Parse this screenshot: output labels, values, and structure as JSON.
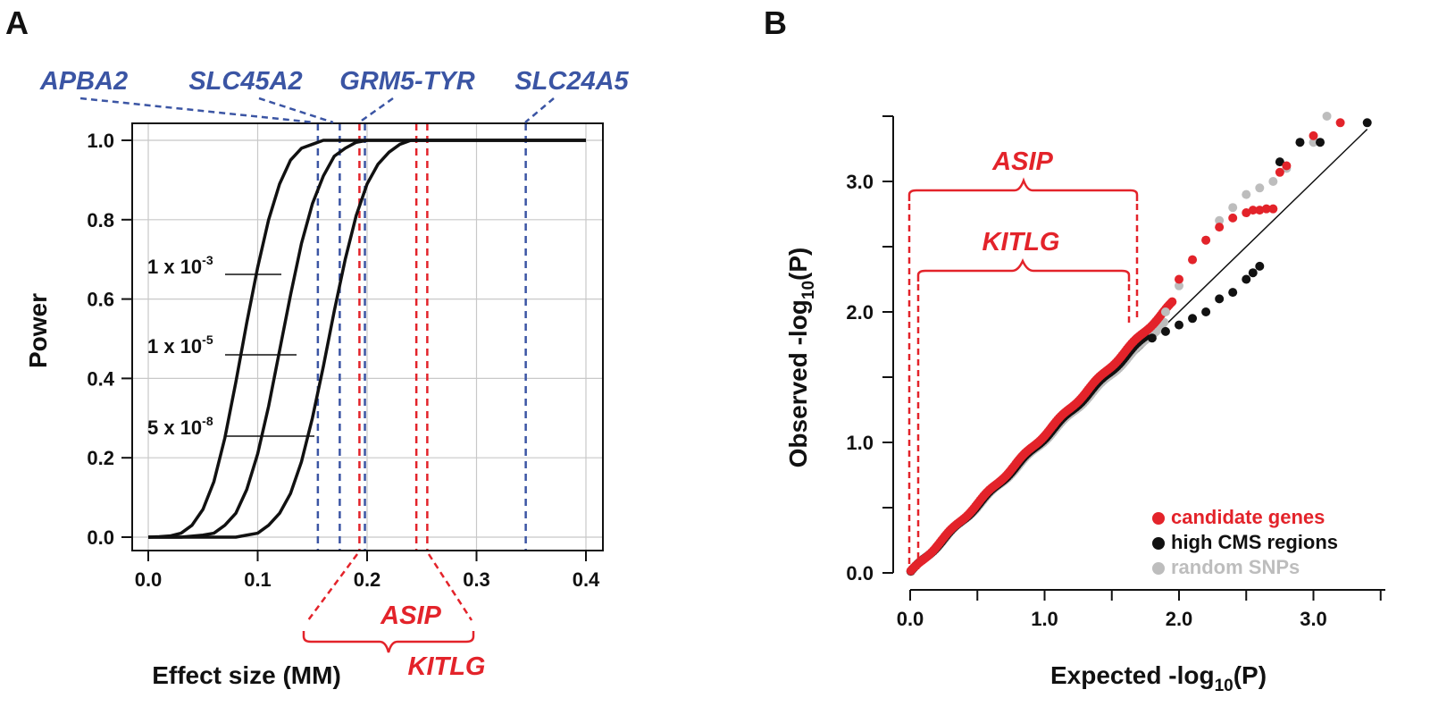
{
  "colors": {
    "blue": "#3b55a4",
    "red": "#e3232a",
    "black": "#111111",
    "grey": "#bdbdbd",
    "grid": "#c8c8c8"
  },
  "chart_data": [
    {
      "panel": "A",
      "type": "line",
      "xlabel": "Effect size (MM)",
      "ylabel": "Power",
      "xlim": [
        0,
        0.4
      ],
      "ylim": [
        0,
        1
      ],
      "xticks": [
        "0.0",
        "0.1",
        "0.2",
        "0.3",
        "0.4"
      ],
      "yticks": [
        "0.0",
        "0.2",
        "0.4",
        "0.6",
        "0.8",
        "1.0"
      ],
      "grid": true,
      "curve_labels": [
        {
          "base": "1 x 10",
          "exp": "-3"
        },
        {
          "base": "1 x 10",
          "exp": "-5"
        },
        {
          "base": "5 x 10",
          "exp": "-8"
        }
      ],
      "series": [
        {
          "x": [
            0,
            0.01,
            0.02,
            0.03,
            0.04,
            0.05,
            0.06,
            0.07,
            0.08,
            0.09,
            0.1,
            0.11,
            0.12,
            0.13,
            0.14,
            0.15,
            0.16,
            0.17,
            0.18,
            0.19,
            0.2,
            0.4
          ],
          "y": [
            0,
            0.001,
            0.003,
            0.01,
            0.03,
            0.07,
            0.14,
            0.25,
            0.39,
            0.54,
            0.68,
            0.8,
            0.89,
            0.95,
            0.98,
            0.99,
            1,
            1,
            1,
            1,
            1,
            1
          ]
        },
        {
          "x": [
            0,
            0.03,
            0.05,
            0.06,
            0.07,
            0.08,
            0.09,
            0.1,
            0.11,
            0.12,
            0.13,
            0.14,
            0.15,
            0.16,
            0.17,
            0.18,
            0.19,
            0.2,
            0.21,
            0.22,
            0.4
          ],
          "y": [
            0,
            0,
            0.005,
            0.01,
            0.03,
            0.06,
            0.12,
            0.21,
            0.33,
            0.47,
            0.61,
            0.74,
            0.84,
            0.91,
            0.96,
            0.98,
            0.995,
            1,
            1,
            1,
            1
          ]
        },
        {
          "x": [
            0,
            0.05,
            0.08,
            0.09,
            0.1,
            0.11,
            0.12,
            0.13,
            0.14,
            0.15,
            0.16,
            0.17,
            0.18,
            0.19,
            0.2,
            0.21,
            0.22,
            0.23,
            0.24,
            0.25,
            0.4
          ],
          "y": [
            0,
            0,
            0,
            0.005,
            0.01,
            0.03,
            0.06,
            0.11,
            0.19,
            0.3,
            0.43,
            0.57,
            0.7,
            0.81,
            0.89,
            0.94,
            0.97,
            0.99,
            1,
            1,
            1
          ]
        }
      ],
      "blue_lines": [
        {
          "gene": "APBA2",
          "x": 0.155
        },
        {
          "gene": "SLC45A2",
          "x": 0.175
        },
        {
          "gene": "GRM5-TYR",
          "x": 0.198
        },
        {
          "gene": "SLC24A5",
          "x": 0.345
        }
      ],
      "red_lines": [
        {
          "gene": "ASIP",
          "x": 0.245
        },
        {
          "gene": "KITLG",
          "x": 0.255
        },
        {
          "gene": "",
          "x": 0.193
        }
      ],
      "blue_labels": [
        "APBA2",
        "SLC45A2",
        "GRM5-TYR",
        "SLC24A5"
      ],
      "red_labels": [
        "ASIP",
        "KITLG"
      ]
    },
    {
      "panel": "B",
      "type": "scatter",
      "xlabel": {
        "pre": "Expected -log",
        "sub": "10",
        "post": "(P)"
      },
      "ylabel": {
        "pre": "Observed -log",
        "sub": "10",
        "post": "(P)"
      },
      "xlim": [
        0,
        3.5
      ],
      "ylim": [
        0,
        3.5
      ],
      "xticks": [
        "0.0",
        "1.0",
        "2.0",
        "3.0"
      ],
      "yticks": [
        "0.0",
        "1.0",
        "2.0",
        "3.0"
      ],
      "grid": false,
      "legend_position": "bottom-right",
      "bracket_labels": [
        "ASIP",
        "KITLG"
      ],
      "series": [
        {
          "name": "candidate genes",
          "color": "#e3232a",
          "x": [
            2.0,
            2.1,
            2.2,
            2.3,
            2.4,
            2.5,
            2.55,
            2.6,
            2.65,
            2.7,
            2.75,
            2.8,
            3.0,
            3.2
          ],
          "y": [
            2.25,
            2.4,
            2.55,
            2.65,
            2.72,
            2.76,
            2.78,
            2.78,
            2.79,
            2.79,
            3.07,
            3.12,
            3.35,
            3.45
          ]
        },
        {
          "name": "high CMS regions",
          "color": "#111111",
          "x": [
            1.8,
            1.9,
            2.0,
            2.1,
            2.2,
            2.3,
            2.4,
            2.5,
            2.55,
            2.6,
            2.75,
            2.9,
            3.05,
            3.4
          ],
          "y": [
            1.8,
            1.85,
            1.9,
            1.95,
            2.0,
            2.1,
            2.15,
            2.25,
            2.3,
            2.35,
            3.15,
            3.3,
            3.3,
            3.45
          ]
        },
        {
          "name": "random SNPs",
          "color": "#bdbdbd",
          "x": [
            1.9,
            2.0,
            2.1,
            2.2,
            2.3,
            2.4,
            2.5,
            2.6,
            2.7,
            2.8,
            2.9,
            3.0,
            3.1
          ],
          "y": [
            2.0,
            2.2,
            2.4,
            2.55,
            2.7,
            2.8,
            2.9,
            2.95,
            3.0,
            3.1,
            3.3,
            3.3,
            3.5
          ]
        }
      ]
    }
  ]
}
